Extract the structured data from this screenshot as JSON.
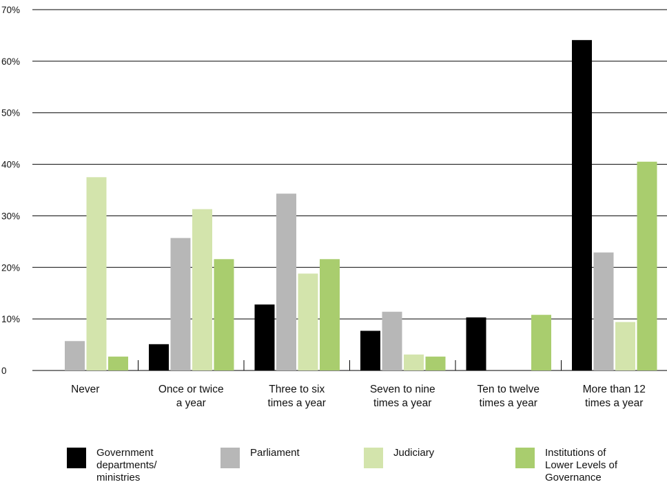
{
  "chart_data": {
    "type": "bar",
    "title": "",
    "xlabel": "",
    "ylabel": "",
    "ylim": [
      0,
      70
    ],
    "yticks": [
      {
        "value": 0,
        "label": "0"
      },
      {
        "value": 10,
        "label": "10%"
      },
      {
        "value": 20,
        "label": "20%"
      },
      {
        "value": 30,
        "label": "30%"
      },
      {
        "value": 40,
        "label": "40%"
      },
      {
        "value": 50,
        "label": "50%"
      },
      {
        "value": 60,
        "label": "60%"
      },
      {
        "value": 70,
        "label": "70%"
      }
    ],
    "grid": true,
    "legend_position": "bottom",
    "categories": [
      [
        "Never"
      ],
      [
        "Once or twice",
        "a year"
      ],
      [
        "Three to six",
        "times a year"
      ],
      [
        "Seven to nine",
        "times a year"
      ],
      [
        "Ten to twelve",
        "times a year"
      ],
      [
        "More than 12",
        "times a year"
      ]
    ],
    "series": [
      {
        "name": "Government departments/ ministries",
        "legend_lines": [
          "Government",
          "departments/",
          "ministries"
        ],
        "color": "#000000",
        "values": [
          0,
          5.1,
          12.8,
          7.7,
          10.3,
          64.1
        ]
      },
      {
        "name": "Parliament",
        "legend_lines": [
          "Parliament"
        ],
        "color": "#b7b7b7",
        "values": [
          5.7,
          25.7,
          34.3,
          11.4,
          0,
          22.9
        ]
      },
      {
        "name": "Judiciary",
        "legend_lines": [
          "Judiciary"
        ],
        "color": "#d3e4ac",
        "values": [
          37.5,
          31.3,
          18.8,
          3.1,
          0,
          9.4
        ]
      },
      {
        "name": "Institutions of Lower Levels of Governance",
        "legend_lines": [
          "Institutions of",
          "Lower Levels of",
          "Governance"
        ],
        "color": "#a9cd6e",
        "values": [
          2.7,
          21.6,
          21.6,
          2.7,
          10.8,
          40.5
        ]
      }
    ]
  }
}
